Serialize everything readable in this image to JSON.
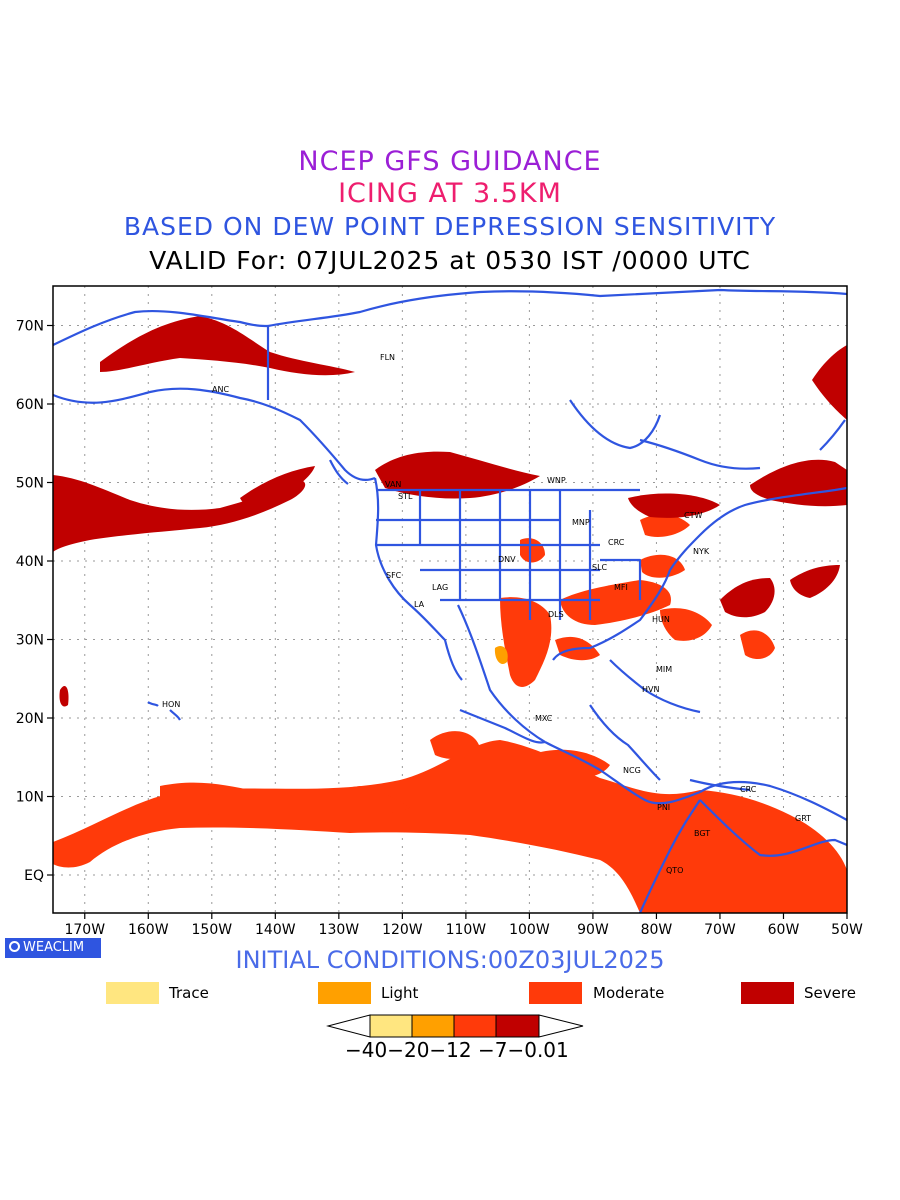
{
  "titles": {
    "line1": "NCEP GFS GUIDANCE",
    "line2": "ICING AT 3.5KM",
    "line3": "BASED ON DEW POINT DEPRESSION SENSITIVITY",
    "line4": "VALID For: 07JUL2025 at 0530 IST /0000 UTC"
  },
  "map": {
    "lat_labels": [
      "70N",
      "60N",
      "50N",
      "40N",
      "30N",
      "20N",
      "10N",
      "EQ"
    ],
    "lon_labels": [
      "170W",
      "160W",
      "150W",
      "140W",
      "130W",
      "120W",
      "110W",
      "100W",
      "90W",
      "80W",
      "70W",
      "60W",
      "50W"
    ],
    "station_labels": [
      "ANC",
      "FLN",
      "VAN",
      "STL",
      "WNP",
      "MNP",
      "CTW",
      "CRC",
      "NYK",
      "SLC",
      "DNV",
      "SFC",
      "LAG",
      "LA",
      "DLS",
      "MFI",
      "HUN",
      "HON",
      "MIM",
      "HVN",
      "MXC",
      "NCG",
      "PNI",
      "CRC",
      "GRT",
      "BGT",
      "QTO"
    ],
    "colors": {
      "coast": "#2f55e0",
      "trace": "#ffe680",
      "light": "#ffa000",
      "moderate": "#ff3a0a",
      "severe": "#c00000"
    }
  },
  "branding": {
    "badge_text": "WEACLIM"
  },
  "initial_conditions": "INITIAL CONDITIONS:00Z03JUL2025",
  "legend": {
    "items": [
      {
        "label": "Trace",
        "color": "#ffe680"
      },
      {
        "label": "Light",
        "color": "#ffa000"
      },
      {
        "label": "Moderate",
        "color": "#ff3a0a"
      },
      {
        "label": "Severe",
        "color": "#c00000"
      }
    ],
    "colorbar_labels": "−40−20−12 −7−0.01"
  }
}
